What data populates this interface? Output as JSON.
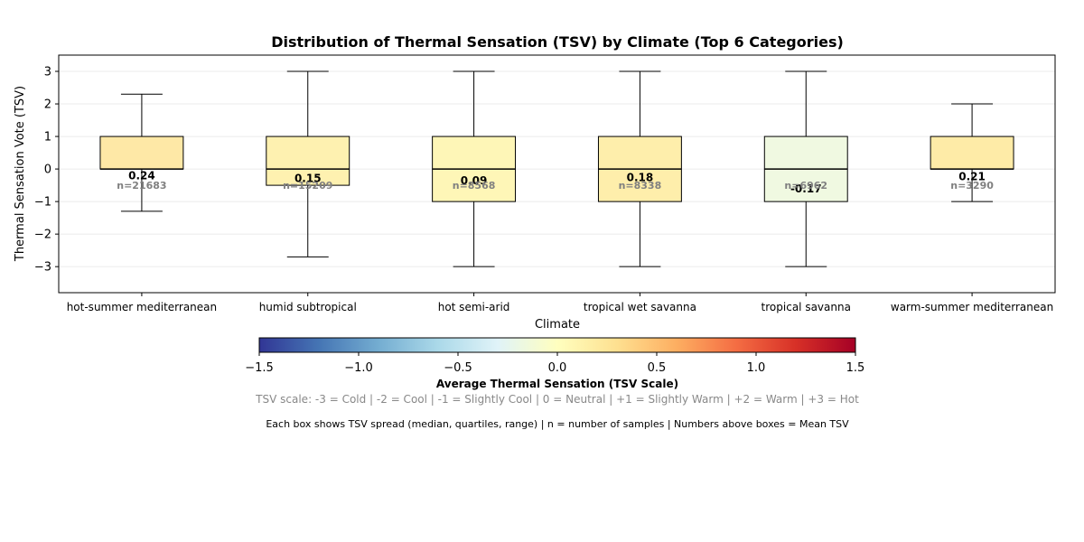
{
  "chart_data": {
    "type": "box",
    "title": "Distribution of Thermal Sensation (TSV) by Climate (Top 6 Categories)",
    "xlabel": "Climate",
    "ylabel": "Thermal Sensation Vote (TSV)",
    "ylim": [
      -3.8,
      3.5
    ],
    "yticks": [
      "−3",
      "−2",
      "−1",
      "0",
      "1",
      "2",
      "3"
    ],
    "ytick_values": [
      -3,
      -2,
      -1,
      0,
      1,
      2,
      3
    ],
    "grid": "horizontal",
    "categories": [
      {
        "name": "hot-summer mediterranean",
        "whisker_low": -1.3,
        "q1": 0,
        "median": 0,
        "q3": 1,
        "whisker_high": 2.3,
        "mean_label": "0.24",
        "mean": 0.24,
        "n_label": "n=21683",
        "color": "#fee8a6"
      },
      {
        "name": "humid subtropical",
        "whisker_low": -2.7,
        "q1": -0.5,
        "median": 0,
        "q3": 1,
        "whisker_high": 3,
        "mean_label": "0.15",
        "mean": 0.15,
        "n_label": "n=15209",
        "color": "#fef1b0"
      },
      {
        "name": "hot semi-arid",
        "whisker_low": -3,
        "q1": -1,
        "median": 0,
        "q3": 1,
        "whisker_high": 3,
        "mean_label": "0.09",
        "mean": 0.09,
        "n_label": "n=8568",
        "color": "#fef6b7"
      },
      {
        "name": "tropical wet savanna",
        "whisker_low": -3,
        "q1": -1,
        "median": 0,
        "q3": 1,
        "whisker_high": 3,
        "mean_label": "0.18",
        "mean": 0.18,
        "n_label": "n=8338",
        "color": "#feeeab"
      },
      {
        "name": "tropical savanna",
        "whisker_low": -3,
        "q1": -1,
        "median": 0,
        "q3": 1,
        "whisker_high": 3,
        "mean_label": "-0.17",
        "mean": -0.17,
        "n_label": "n=6962",
        "color": "#f0f9e1"
      },
      {
        "name": "warm-summer mediterranean",
        "whisker_low": -1,
        "q1": 0,
        "median": 0,
        "q3": 1,
        "whisker_high": 2,
        "mean_label": "0.21",
        "mean": 0.21,
        "n_label": "n=3290",
        "color": "#feeba7"
      }
    ],
    "colorbar": {
      "label": "Average Thermal Sensation (TSV Scale)",
      "range": [
        -1.5,
        1.5
      ],
      "ticks": [
        "−1.5",
        "−1.0",
        "−0.5",
        "0.0",
        "0.5",
        "1.0",
        "1.5"
      ],
      "tick_values": [
        -1.5,
        -1.0,
        -0.5,
        0.0,
        0.5,
        1.0,
        1.5
      ],
      "colormap": "RdYlBu_r",
      "stops": [
        "#313695",
        "#4575b4",
        "#74add1",
        "#abd9e9",
        "#e0f3f8",
        "#ffffbf",
        "#fee090",
        "#fdae61",
        "#f46d43",
        "#d73027",
        "#a50026"
      ]
    },
    "scale_note": "TSV scale: -3 = Cold | -2 = Cool | -1 = Slightly Cool | 0 = Neutral | +1 = Slightly Warm | +2 = Warm | +3 = Hot",
    "footnote": "Each box shows TSV spread (median, quartiles, range) | n = number of samples | Numbers above boxes = Mean TSV"
  }
}
